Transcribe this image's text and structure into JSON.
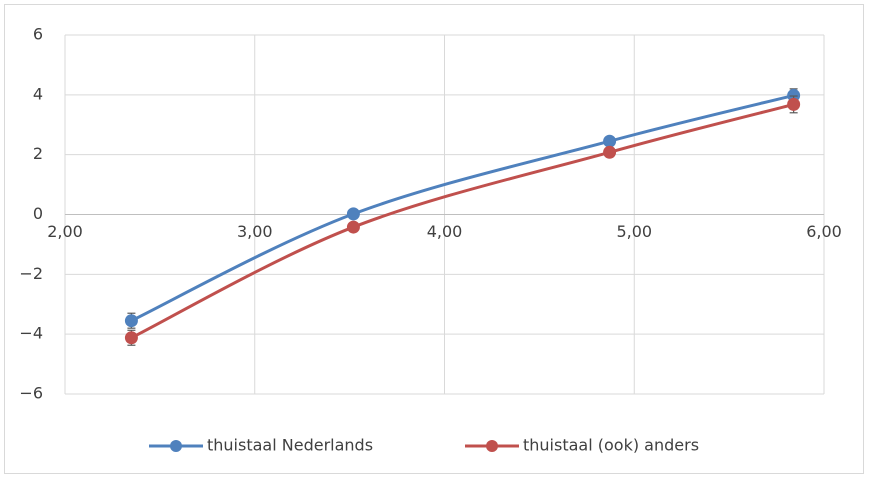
{
  "chart_data": {
    "type": "line",
    "title": "",
    "xlabel": "",
    "ylabel": "",
    "xlim": [
      2.0,
      6.0
    ],
    "ylim": [
      -6,
      6
    ],
    "x_ticks": [
      2.0,
      3.0,
      4.0,
      5.0,
      6.0
    ],
    "x_tick_labels": [
      "2,00",
      "3,00",
      "4,00",
      "5,00",
      "6,00"
    ],
    "y_ticks": [
      -6,
      -4,
      -2,
      0,
      2,
      4,
      6
    ],
    "y_tick_labels": [
      "−6",
      "−4",
      "−2",
      "0",
      "2",
      "4",
      "6"
    ],
    "grid": true,
    "legend_position": "bottom",
    "smooth": true,
    "series": [
      {
        "name": "thuistaal Nederlands",
        "color": "#4f81bd",
        "points": [
          {
            "x": 2.35,
            "y": -3.55,
            "err": 0.25
          },
          {
            "x": 3.52,
            "y": 0.02,
            "err": 0.08
          },
          {
            "x": 4.87,
            "y": 2.45,
            "err": 0.12
          },
          {
            "x": 5.84,
            "y": 3.98,
            "err": 0.22
          }
        ]
      },
      {
        "name": "thuistaal (ook) anders",
        "color": "#c0504d",
        "points": [
          {
            "x": 2.35,
            "y": -4.12,
            "err": 0.25
          },
          {
            "x": 3.52,
            "y": -0.42,
            "err": 0.1
          },
          {
            "x": 4.87,
            "y": 2.08,
            "err": 0.15
          },
          {
            "x": 5.84,
            "y": 3.68,
            "err": 0.28
          }
        ]
      }
    ]
  }
}
